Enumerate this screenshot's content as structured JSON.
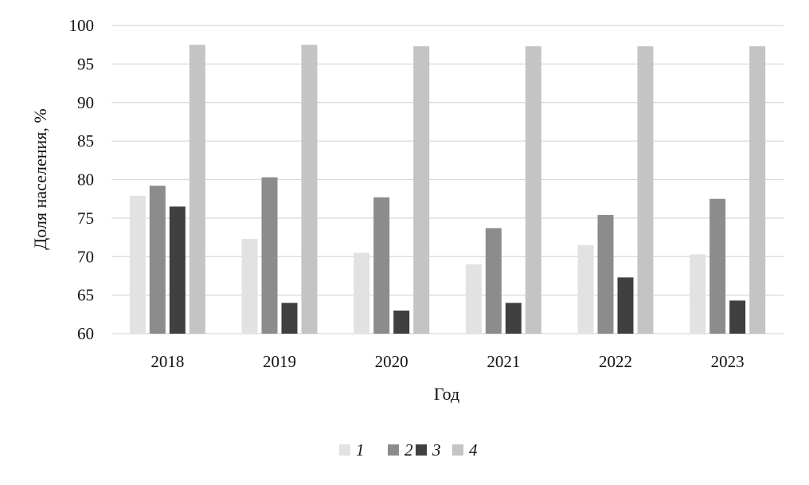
{
  "chart_data": {
    "type": "bar",
    "title": "",
    "xlabel": "Год",
    "ylabel": "Доля населения, %",
    "ylim": [
      60,
      100
    ],
    "yticks": [
      "60",
      "65",
      "70",
      "75",
      "80",
      "85",
      "90",
      "95",
      "100"
    ],
    "categories": [
      "2018",
      "2019",
      "2020",
      "2021",
      "2022",
      "2023"
    ],
    "grid": true,
    "legend_position": "bottom",
    "series": [
      {
        "name": "1",
        "color": "#e2e2e2",
        "values": [
          77.9,
          72.3,
          70.5,
          69.0,
          71.5,
          70.3
        ]
      },
      {
        "name": "2",
        "color": "#8c8c8c",
        "values": [
          79.2,
          80.3,
          77.7,
          73.7,
          75.4,
          77.5
        ]
      },
      {
        "name": "3",
        "color": "#404040",
        "values": [
          76.5,
          64.0,
          63.0,
          64.0,
          67.3,
          64.3
        ]
      },
      {
        "name": "4",
        "color": "#c4c4c4",
        "values": [
          97.5,
          97.5,
          97.3,
          97.3,
          97.3,
          97.3
        ]
      }
    ]
  }
}
